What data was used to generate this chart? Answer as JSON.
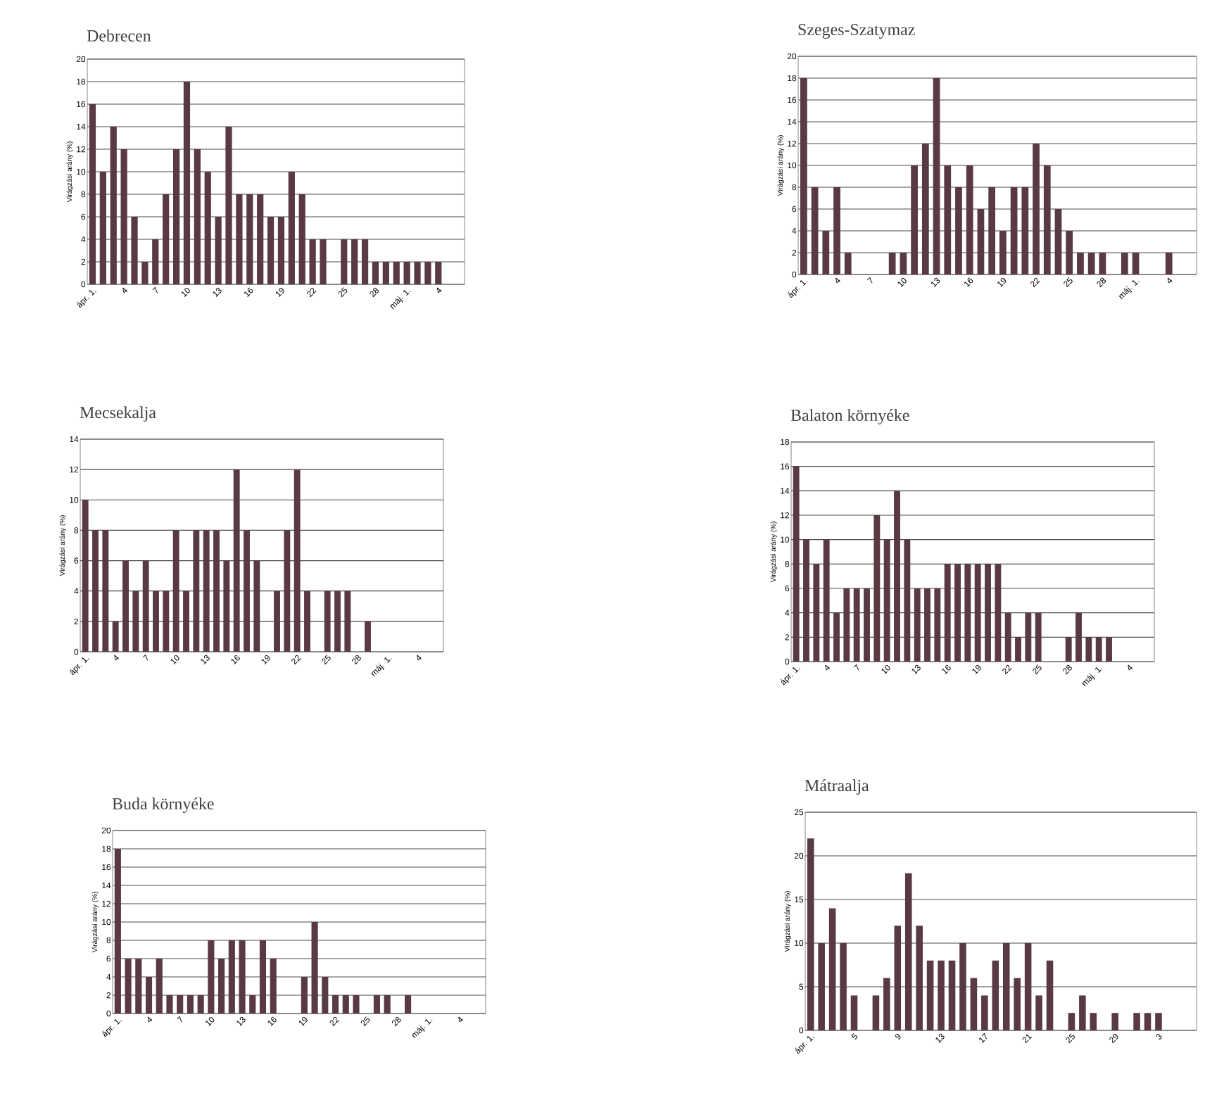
{
  "chart_data": [
    {
      "type": "bar",
      "title": "Debrecen",
      "ylabel": "Virágzási arány (%)",
      "color": "#5a3a42",
      "grid": "y",
      "ylim": [
        0,
        20
      ],
      "yticks": [
        0,
        2,
        4,
        6,
        8,
        10,
        12,
        14,
        16,
        18,
        20
      ],
      "categories": [
        "ápr. 1.",
        null,
        null,
        "4",
        null,
        null,
        "7",
        null,
        null,
        "10",
        null,
        null,
        "13",
        null,
        null,
        "16",
        null,
        null,
        "19",
        null,
        null,
        "22",
        null,
        null,
        "25",
        null,
        null,
        "28",
        null,
        null,
        "máj. 1.",
        null,
        null,
        "4",
        null,
        null
      ],
      "values": [
        16,
        10,
        14,
        12,
        6,
        2,
        4,
        8,
        12,
        18,
        12,
        10,
        6,
        14,
        8,
        8,
        8,
        6,
        6,
        10,
        8,
        4,
        4,
        0,
        4,
        4,
        4,
        2,
        2,
        2,
        2,
        2,
        2,
        2,
        0,
        0
      ]
    },
    {
      "type": "bar",
      "title": "Szeges-Szatymaz",
      "ylabel": "Virágzási arány (%)",
      "color": "#5a3a42",
      "grid": "y",
      "ylim": [
        0,
        20
      ],
      "yticks": [
        0,
        2,
        4,
        6,
        8,
        10,
        12,
        14,
        16,
        18,
        20
      ],
      "categories": [
        "ápr. 1.",
        null,
        null,
        "4",
        null,
        null,
        "7",
        null,
        null,
        "10",
        null,
        null,
        "13",
        null,
        null,
        "16",
        null,
        null,
        "19",
        null,
        null,
        "22",
        null,
        null,
        "25",
        null,
        null,
        "28",
        null,
        null,
        "máj. 1.",
        null,
        null,
        "4",
        null,
        null
      ],
      "values": [
        18,
        8,
        4,
        8,
        2,
        0,
        0,
        0,
        2,
        2,
        10,
        12,
        18,
        10,
        8,
        10,
        6,
        8,
        4,
        8,
        8,
        12,
        10,
        6,
        4,
        2,
        2,
        2,
        0,
        2,
        2,
        0,
        0,
        2,
        0,
        0
      ]
    },
    {
      "type": "bar",
      "title": "Mecsekalja",
      "ylabel": "Virágzási arány (%)",
      "color": "#5a3a42",
      "grid": "y",
      "ylim": [
        0,
        14
      ],
      "yticks": [
        0,
        2,
        4,
        6,
        8,
        10,
        12,
        14
      ],
      "categories": [
        "ápr. 1.",
        null,
        null,
        "4",
        null,
        null,
        "7",
        null,
        null,
        "10",
        null,
        null,
        "13",
        null,
        null,
        "16",
        null,
        null,
        "19",
        null,
        null,
        "22",
        null,
        null,
        "25",
        null,
        null,
        "28",
        null,
        null,
        "máj. 1.",
        null,
        null,
        "4",
        null,
        null
      ],
      "values": [
        10,
        8,
        8,
        2,
        6,
        4,
        6,
        4,
        4,
        8,
        4,
        8,
        8,
        8,
        6,
        12,
        8,
        6,
        0,
        4,
        8,
        12,
        4,
        0,
        4,
        4,
        4,
        0,
        2,
        0,
        0,
        0,
        0,
        0,
        0,
        0
      ]
    },
    {
      "type": "bar",
      "title": "Balaton környéke",
      "ylabel": "Virágzási arány (%)",
      "color": "#5a3a42",
      "grid": "y",
      "ylim": [
        0,
        18
      ],
      "yticks": [
        0,
        2,
        4,
        6,
        8,
        10,
        12,
        14,
        16,
        18
      ],
      "categories": [
        "ápr. 1.",
        null,
        null,
        "4",
        null,
        null,
        "7",
        null,
        null,
        "10",
        null,
        null,
        "13",
        null,
        null,
        "16",
        null,
        null,
        "19",
        null,
        null,
        "22",
        null,
        null,
        "25",
        null,
        null,
        "28",
        null,
        null,
        "máj. 1.",
        null,
        null,
        "4",
        null,
        null
      ],
      "values": [
        16,
        10,
        8,
        10,
        4,
        6,
        6,
        6,
        12,
        10,
        14,
        10,
        6,
        6,
        6,
        8,
        8,
        8,
        8,
        8,
        8,
        4,
        2,
        4,
        4,
        0,
        0,
        2,
        4,
        2,
        2,
        2,
        0,
        0,
        0,
        0
      ]
    },
    {
      "type": "bar",
      "title": "Buda környéke",
      "ylabel": "Virágzási arány (%)",
      "color": "#5a3a42",
      "grid": "y",
      "ylim": [
        0,
        20
      ],
      "yticks": [
        0,
        2,
        4,
        6,
        8,
        10,
        12,
        14,
        16,
        18,
        20
      ],
      "categories": [
        "ápr. 1.",
        null,
        null,
        "4",
        null,
        null,
        "7",
        null,
        null,
        "10",
        null,
        null,
        "13",
        null,
        null,
        "16",
        null,
        null,
        "19",
        null,
        null,
        "22",
        null,
        null,
        "25",
        null,
        null,
        "28",
        null,
        null,
        "máj. 1.",
        null,
        null,
        "4",
        null,
        null
      ],
      "values": [
        18,
        6,
        6,
        4,
        6,
        2,
        2,
        2,
        2,
        8,
        6,
        8,
        8,
        2,
        8,
        6,
        0,
        0,
        4,
        10,
        4,
        2,
        2,
        2,
        0,
        2,
        2,
        0,
        2,
        0,
        0,
        0,
        0,
        0,
        0,
        0
      ]
    },
    {
      "type": "bar",
      "title": "Mátraalja",
      "ylabel": "Virágzási arány (%)",
      "color": "#5a3a42",
      "grid": "y",
      "ylim": [
        0,
        25
      ],
      "yticks": [
        0,
        5,
        10,
        15,
        20,
        25
      ],
      "categories": [
        "ápr. 1.",
        null,
        null,
        null,
        "5",
        null,
        null,
        null,
        "9",
        null,
        null,
        null,
        "13",
        null,
        null,
        null,
        "17",
        null,
        null,
        null,
        "21",
        null,
        null,
        null,
        "25",
        null,
        null,
        null,
        "29",
        null,
        null,
        null,
        "3",
        null,
        null,
        null
      ],
      "values": [
        22,
        10,
        14,
        10,
        4,
        0,
        4,
        6,
        12,
        18,
        12,
        8,
        8,
        8,
        10,
        6,
        4,
        8,
        10,
        6,
        10,
        4,
        8,
        0,
        2,
        4,
        2,
        0,
        2,
        0,
        2,
        2,
        2,
        0,
        0,
        0
      ]
    }
  ]
}
